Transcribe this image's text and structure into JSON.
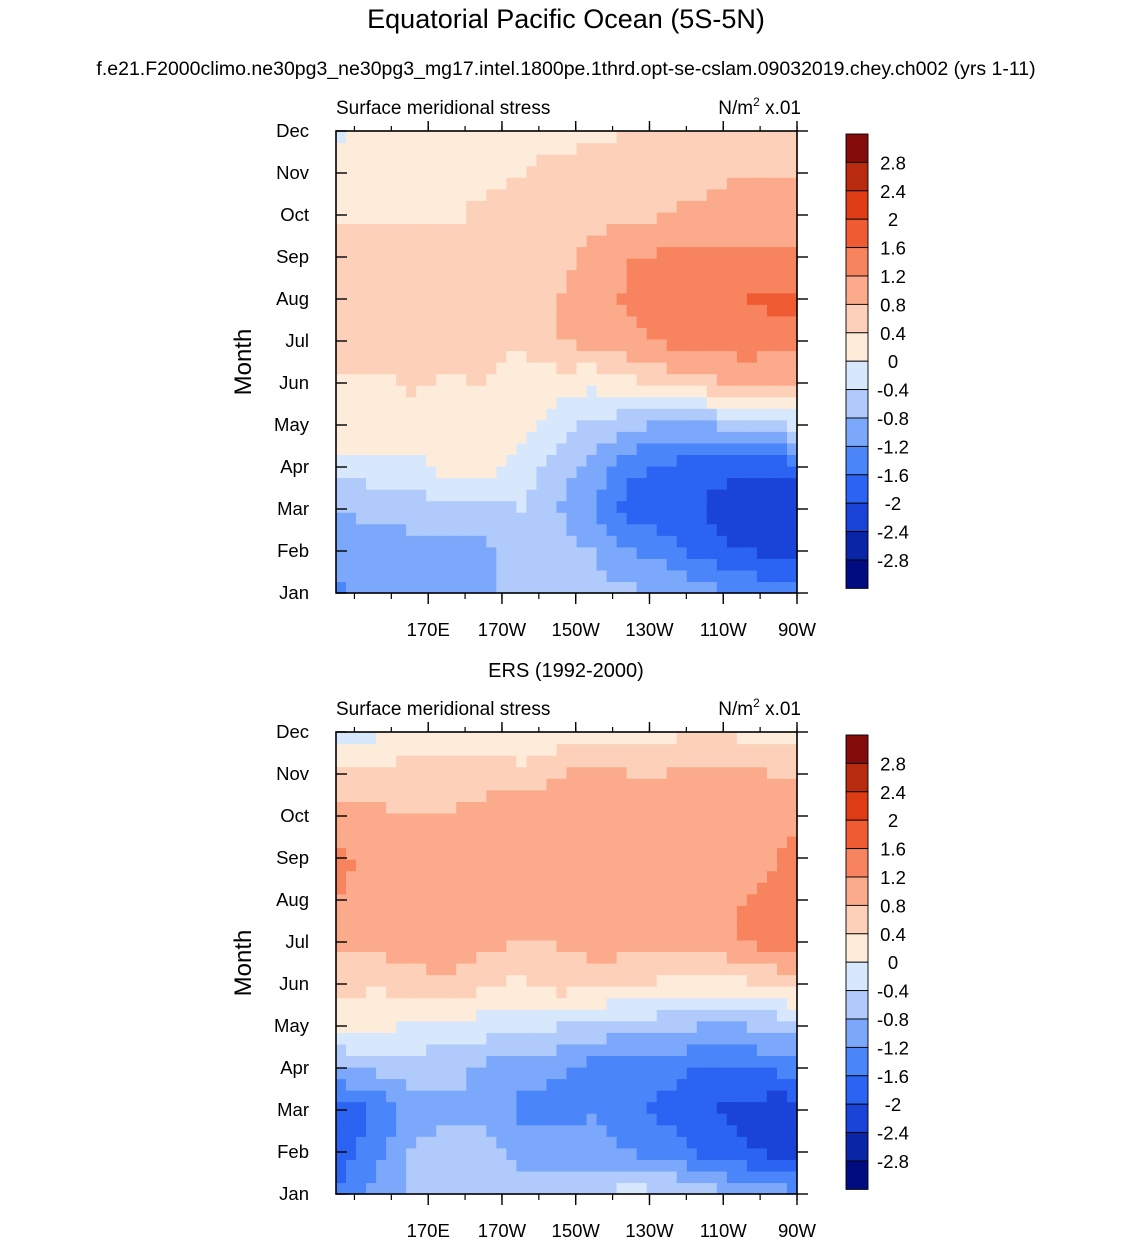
{
  "title": "Equatorial Pacific Ocean (5S-5N)",
  "subtitle": "f.e21.F2000climo.ne30pg3_ne30pg3_mg17.intel.1800pe.1thrd.opt-se-cslam.09032019.chey.ch002 (yrs 1-11)",
  "colormap": [
    "#000c80",
    "#0a26a6",
    "#1a44d8",
    "#2b63f2",
    "#4a86f9",
    "#7ca8fb",
    "#b0cafb",
    "#d8e8fc",
    "#feecda",
    "#fdd1b9",
    "#fbab8b",
    "#f7845f",
    "#ef5b33",
    "#dd3c14",
    "#b82b0e",
    "#860c0c"
  ],
  "chart_data": [
    {
      "type": "heatmap",
      "title": "",
      "left_label": "Surface meridional stress",
      "units_label": "N/m",
      "units_sup": "2",
      "units_suffix": " x.01",
      "ylabel": "Month",
      "xlabel": "",
      "xlim": [
        145,
        270
      ],
      "ylim": [
        1,
        12
      ],
      "x_ticks": [
        170,
        190,
        210,
        230,
        250,
        270
      ],
      "x_tick_labels": [
        "170E",
        "170W",
        "150W",
        "130W",
        "110W",
        "90W"
      ],
      "y_tick_labels": [
        "Jan",
        "Feb",
        "Mar",
        "Apr",
        "May",
        "Jun",
        "Jul",
        "Aug",
        "Sep",
        "Oct",
        "Nov",
        "Dec"
      ],
      "levels": [
        -2.8,
        -2.4,
        -2,
        -1.6,
        -1.2,
        -0.8,
        -0.4,
        0,
        0.4,
        0.8,
        1.2,
        1.6,
        2,
        2.4,
        2.8
      ],
      "level_labels": [
        "2.8",
        "2.4",
        "2",
        "1.6",
        "1.2",
        "0.8",
        "0.4",
        "0",
        "-0.4",
        "-0.8",
        "-1.2",
        "-1.6",
        "-2",
        "-2.4",
        "-2.8"
      ],
      "x": [
        145,
        155,
        165,
        175,
        185,
        195,
        205,
        215,
        225,
        235,
        245,
        255,
        265,
        270
      ],
      "months": [
        "Jan",
        "Feb",
        "Mar",
        "Apr",
        "May",
        "Jun",
        "Jul",
        "Aug",
        "Sep",
        "Oct",
        "Nov",
        "Dec"
      ],
      "z": [
        [
          -1.3,
          -1.0,
          -1.0,
          -1.0,
          -0.9,
          -0.6,
          -0.6,
          -0.7,
          -0.7,
          -0.8,
          -1.0,
          -1.2,
          -1.4,
          -1.4
        ],
        [
          -1.0,
          -1.0,
          -1.0,
          -1.0,
          -0.9,
          -0.6,
          -0.6,
          -0.8,
          -1.2,
          -1.4,
          -1.8,
          -2.0,
          -2.1,
          -2.0
        ],
        [
          -0.8,
          -0.7,
          -0.6,
          -0.5,
          -0.5,
          -0.4,
          -0.8,
          -1.2,
          -1.8,
          -1.9,
          -2.0,
          -2.3,
          -2.4,
          -2.3
        ],
        [
          -0.2,
          -0.2,
          -0.2,
          0.2,
          0.2,
          -0.2,
          -0.6,
          -1.0,
          -1.5,
          -1.7,
          -1.9,
          -1.9,
          -1.9,
          -1.8
        ],
        [
          0.3,
          0.3,
          0.3,
          0.3,
          0.3,
          0.2,
          -0.2,
          -0.5,
          -0.7,
          -0.9,
          -0.9,
          -0.6,
          -0.4,
          -0.3
        ],
        [
          0.35,
          0.3,
          0.45,
          0.35,
          0.4,
          0.1,
          0.2,
          0.1,
          0.3,
          0.5,
          0.7,
          0.9,
          0.8,
          0.8
        ],
        [
          0.7,
          0.6,
          0.6,
          0.6,
          0.6,
          0.5,
          0.8,
          0.9,
          1.1,
          1.3,
          1.4,
          1.4,
          1.4,
          1.4
        ],
        [
          0.8,
          0.6,
          0.6,
          0.6,
          0.6,
          0.7,
          0.8,
          1.0,
          1.3,
          1.5,
          1.5,
          1.6,
          1.7,
          1.7
        ],
        [
          0.6,
          0.6,
          0.6,
          0.6,
          0.6,
          0.6,
          0.7,
          0.9,
          1.2,
          1.3,
          1.3,
          1.3,
          1.3,
          1.3
        ],
        [
          0.3,
          0.3,
          0.3,
          0.3,
          0.5,
          0.6,
          0.7,
          0.7,
          0.7,
          0.8,
          0.9,
          0.9,
          0.9,
          0.9
        ],
        [
          0.1,
          0.2,
          0.2,
          0.3,
          0.3,
          0.4,
          0.5,
          0.6,
          0.6,
          0.7,
          0.7,
          0.8,
          0.8,
          0.8
        ],
        [
          -0.1,
          0.1,
          0.1,
          0.1,
          0.2,
          0.3,
          0.3,
          0.3,
          0.4,
          0.4,
          0.4,
          0.5,
          0.5,
          0.5
        ]
      ]
    },
    {
      "type": "heatmap",
      "title": "ERS (1992-2000)",
      "left_label": "Surface meridional stress",
      "units_label": "N/m",
      "units_sup": "2",
      "units_suffix": " x.01",
      "ylabel": "Month",
      "xlabel": "",
      "xlim": [
        145,
        270
      ],
      "ylim": [
        1,
        12
      ],
      "x_ticks": [
        170,
        190,
        210,
        230,
        250,
        270
      ],
      "x_tick_labels": [
        "170E",
        "170W",
        "150W",
        "130W",
        "110W",
        "90W"
      ],
      "y_tick_labels": [
        "Jan",
        "Feb",
        "Mar",
        "Apr",
        "May",
        "Jun",
        "Jul",
        "Aug",
        "Sep",
        "Oct",
        "Nov",
        "Dec"
      ],
      "levels": [
        -2.8,
        -2.4,
        -2,
        -1.6,
        -1.2,
        -0.8,
        -0.4,
        0,
        0.4,
        0.8,
        1.2,
        1.6,
        2,
        2.4,
        2.8
      ],
      "level_labels": [
        "2.8",
        "2.4",
        "2",
        "1.6",
        "1.2",
        "0.8",
        "0.4",
        "0",
        "-0.4",
        "-0.8",
        "-1.2",
        "-1.6",
        "-2",
        "-2.4",
        "-2.8"
      ],
      "x": [
        145,
        155,
        165,
        175,
        185,
        195,
        205,
        215,
        225,
        235,
        245,
        255,
        265,
        270
      ],
      "months": [
        "Jan",
        "Feb",
        "Mar",
        "Apr",
        "May",
        "Jun",
        "Jul",
        "Aug",
        "Sep",
        "Oct",
        "Nov",
        "Dec"
      ],
      "z": [
        [
          -1.5,
          -1.1,
          -0.7,
          -0.5,
          -0.6,
          -0.7,
          -0.6,
          -0.4,
          -0.2,
          -0.3,
          -0.6,
          -0.8,
          -1.0,
          -1.1
        ],
        [
          -1.9,
          -1.4,
          -0.8,
          -0.6,
          -0.7,
          -0.9,
          -1.0,
          -1.0,
          -1.2,
          -1.4,
          -1.7,
          -1.9,
          -2.1,
          -2.1
        ],
        [
          -1.8,
          -1.6,
          -1.0,
          -0.9,
          -0.9,
          -1.3,
          -1.4,
          -1.2,
          -1.5,
          -1.7,
          -2.0,
          -2.1,
          -2.3,
          -2.2
        ],
        [
          -0.9,
          -0.7,
          -0.6,
          -0.6,
          -0.9,
          -1.0,
          -1.1,
          -1.4,
          -1.5,
          -1.5,
          -1.6,
          -1.6,
          -1.5,
          -1.5
        ],
        [
          0.1,
          0.2,
          -0.1,
          -0.2,
          -0.2,
          -0.3,
          -0.4,
          -0.5,
          -0.6,
          -0.7,
          -0.8,
          -0.8,
          -0.7,
          -0.6
        ],
        [
          0.6,
          0.4,
          0.6,
          0.7,
          0.5,
          0.3,
          0.6,
          0.5,
          0.4,
          0.3,
          0.2,
          0.3,
          0.5,
          0.6
        ],
        [
          0.9,
          1.0,
          1.0,
          1.1,
          0.9,
          0.8,
          0.8,
          1.0,
          1.0,
          1.0,
          1.0,
          1.2,
          1.4,
          1.3
        ],
        [
          1.2,
          1.1,
          1.1,
          1.0,
          1.1,
          1.2,
          1.0,
          1.1,
          1.1,
          1.0,
          1.0,
          1.2,
          1.4,
          1.4
        ],
        [
          1.3,
          1.1,
          1.0,
          0.9,
          1.1,
          1.0,
          0.9,
          1.1,
          1.0,
          1.0,
          0.9,
          1.0,
          1.2,
          1.3
        ],
        [
          1.0,
          0.9,
          0.8,
          0.8,
          0.9,
          1.0,
          1.0,
          1.0,
          1.1,
          1.0,
          0.9,
          0.9,
          1.1,
          1.1
        ],
        [
          0.5,
          0.6,
          0.6,
          0.7,
          0.7,
          0.6,
          0.8,
          0.9,
          0.8,
          0.8,
          1.0,
          0.9,
          0.8,
          0.8
        ],
        [
          -0.2,
          -0.1,
          0.0,
          0.1,
          0.0,
          -0.1,
          0.1,
          0.2,
          0.3,
          0.3,
          0.4,
          0.3,
          0.3,
          0.3
        ]
      ]
    }
  ]
}
